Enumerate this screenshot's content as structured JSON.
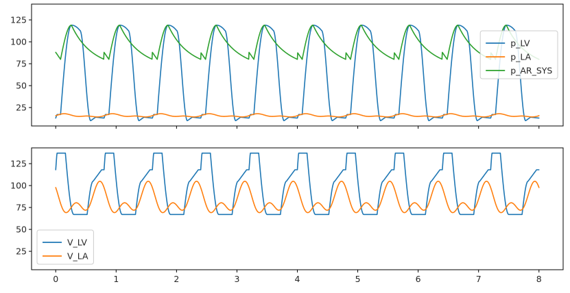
{
  "chart_data": [
    {
      "type": "line",
      "xlim": [
        -0.4,
        8.4
      ],
      "ylim": [
        4,
        143
      ],
      "x_ticks": [
        0,
        1,
        2,
        3,
        4,
        5,
        6,
        7,
        8
      ],
      "show_x_tick_labels": false,
      "y_ticks": [
        25,
        50,
        75,
        100,
        125
      ],
      "legend_position": "center-right",
      "grid": false,
      "series": [
        {
          "name": "p_LV",
          "color": "#1f77b4",
          "model": "ventricle_pressure",
          "period": 0.8,
          "min": 10,
          "max": 119,
          "diastolic_plateau": 17
        },
        {
          "name": "p_LA",
          "color": "#ff7f0e",
          "model": "atrial_pressure",
          "period": 0.8,
          "min": 13.5,
          "max": 18
        },
        {
          "name": "p_AR_SYS",
          "color": "#2ca02c",
          "model": "arterial_pressure",
          "period": 0.8,
          "min": 80,
          "max": 119,
          "start": 88,
          "end": 88
        }
      ]
    },
    {
      "type": "line",
      "xlim": [
        -0.4,
        8.4
      ],
      "ylim": [
        4,
        143
      ],
      "x_ticks": [
        0,
        1,
        2,
        3,
        4,
        5,
        6,
        7,
        8
      ],
      "show_x_tick_labels": true,
      "y_ticks": [
        25,
        50,
        75,
        100,
        125
      ],
      "legend_position": "lower-left",
      "grid": false,
      "series": [
        {
          "name": "V_LV",
          "color": "#1f77b4",
          "model": "ventricle_volume",
          "period": 0.8,
          "min": 67,
          "max": 137,
          "start": 118
        },
        {
          "name": "V_LA",
          "color": "#ff7f0e",
          "model": "atrial_volume",
          "period": 0.8,
          "min": 60,
          "max": 105,
          "start": 87
        }
      ]
    }
  ]
}
